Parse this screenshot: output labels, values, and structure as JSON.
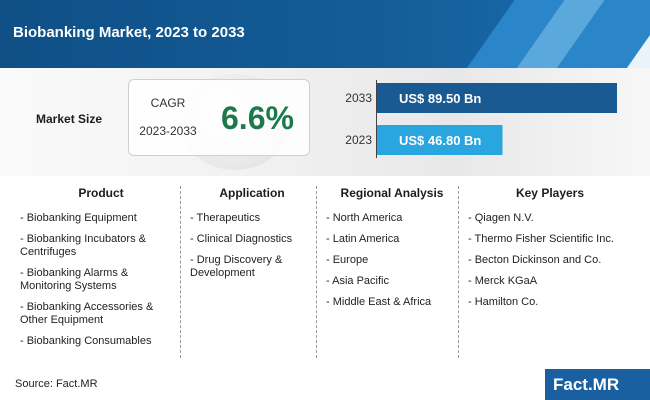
{
  "title": "Biobanking Market, 2023 to 2033",
  "market_size_label": "Market Size",
  "cagr": {
    "label": "CAGR",
    "period": "2023-2033",
    "value": "6.6%"
  },
  "chart_data": {
    "type": "bar",
    "orientation": "horizontal",
    "categories": [
      "2033",
      "2023"
    ],
    "values": [
      89.5,
      46.8
    ],
    "value_labels": [
      "US$ 89.50 Bn",
      "US$ 46.80 Bn"
    ],
    "colors": [
      "#1a5a92",
      "#29a6df"
    ]
  },
  "columns": [
    {
      "heading": "Product",
      "items": [
        "- Biobanking Equipment",
        "- Biobanking Incubators & Centrifuges",
        "- Biobanking Alarms & Monitoring Systems",
        "- Biobanking Accessories & Other Equipment",
        "- Biobanking Consumables"
      ]
    },
    {
      "heading": "Application",
      "items": [
        "- Therapeutics",
        "- Clinical Diagnostics",
        "- Drug Discovery & Development"
      ]
    },
    {
      "heading": "Regional Analysis",
      "items": [
        "- North America",
        "- Latin America",
        "- Europe",
        "- Asia Pacific",
        "- Middle East & Africa"
      ]
    },
    {
      "heading": "Key Players",
      "items": [
        "- Qiagen N.V.",
        "- Thermo Fisher Scientific Inc.",
        "- Becton Dickinson and Co.",
        "- Merck KGaA",
        "- Hamilton Co."
      ]
    }
  ],
  "source": "Source: Fact.MR",
  "logo_text": "Fact.MR"
}
